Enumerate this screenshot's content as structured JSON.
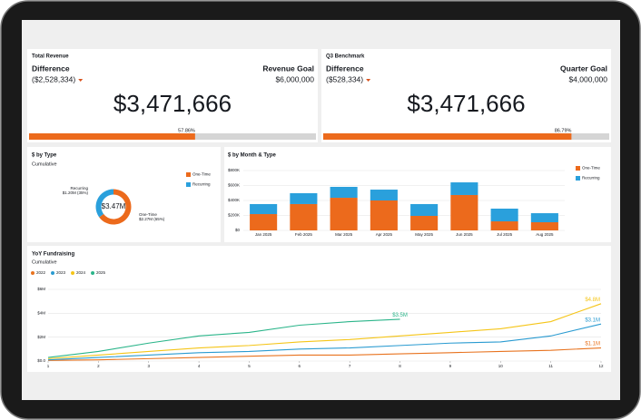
{
  "cards": [
    {
      "title": "Total Revenue",
      "difference_label": "Difference",
      "difference": "($2,528,334)",
      "goal_label": "Revenue Goal",
      "goal": {
        "value": 6000000,
        "label": "$6,000,000"
      },
      "amount": {
        "value": 3471666,
        "label": "$3,471,666"
      },
      "percent": "57.86%"
    },
    {
      "title": "Q3 Benchmark",
      "difference_label": "Difference",
      "difference": "($528,334)",
      "goal_label": "Quarter Goal",
      "goal": {
        "value": 4000000,
        "label": "$4,000,000"
      },
      "amount": {
        "value": 3471666,
        "label": "$3,471,666"
      },
      "percent": "86.79%"
    }
  ],
  "chart_data": [
    {
      "type": "donut",
      "title": "$ by Type",
      "subtitle": "Cumulative",
      "center_label": "$3.47M",
      "categories": [
        "One-Time",
        "Recurring"
      ],
      "values": [
        65,
        35
      ],
      "value_labels": [
        "$2.27M (65%)",
        "$1.20M (35%)"
      ],
      "colors": [
        "#ec6a1c",
        "#2aa0dc"
      ],
      "legend": "right"
    },
    {
      "type": "bar",
      "stacked": true,
      "title": "$ by Month & Type",
      "categories": [
        "Jan 2025",
        "Feb 2025",
        "Mar 2025",
        "Apr 2025",
        "May 2025",
        "Jun 2025",
        "Jul 2025",
        "Aug 2025"
      ],
      "series": [
        {
          "name": "One-Time",
          "color": "#ec6a1c",
          "values": [
            218000,
            352000,
            436000,
            400000,
            194000,
            473000,
            121000,
            109000
          ]
        },
        {
          "name": "Recurring",
          "color": "#2aa0dc",
          "values": [
            134000,
            145000,
            146000,
            145000,
            158000,
            169000,
            170000,
            121000
          ]
        }
      ],
      "ylim": [
        0,
        800000
      ],
      "yticks": [
        {
          "value": 0,
          "label": "$0"
        },
        {
          "value": 200000,
          "label": "$200K"
        },
        {
          "value": 400000,
          "label": "$400K"
        },
        {
          "value": 600000,
          "label": "$600K"
        },
        {
          "value": 800000,
          "label": "$800K"
        }
      ],
      "grid": true,
      "legend": "right"
    },
    {
      "type": "line",
      "title": "YoY Fundraising",
      "subtitle": "Cumulative",
      "x": [
        1,
        2,
        3,
        4,
        5,
        6,
        7,
        8,
        9,
        10,
        11,
        12
      ],
      "xlim": [
        1,
        12
      ],
      "xticks": [
        1,
        2,
        3,
        4,
        5,
        6,
        7,
        8,
        9,
        10,
        11,
        12
      ],
      "series": [
        {
          "name": "2022",
          "color": "#e8731f",
          "values": [
            50000,
            100000,
            200000,
            300000,
            400000,
            500000,
            500000,
            600000,
            700000,
            800000,
            900000,
            1100000
          ],
          "value_labels": [
            null,
            null,
            null,
            null,
            null,
            null,
            null,
            null,
            null,
            null,
            null,
            "$1.1M"
          ]
        },
        {
          "name": "2023",
          "color": "#2a9bd1",
          "values": [
            100000,
            300000,
            500000,
            700000,
            800000,
            1000000,
            1100000,
            1300000,
            1500000,
            1600000,
            2100000,
            3100000
          ],
          "value_labels": [
            null,
            null,
            null,
            null,
            null,
            null,
            null,
            null,
            null,
            null,
            null,
            "$3.1M"
          ]
        },
        {
          "name": "2024",
          "color": "#f5c518",
          "values": [
            200000,
            500000,
            800000,
            1100000,
            1300000,
            1600000,
            1800000,
            2100000,
            2400000,
            2700000,
            3300000,
            4800000
          ],
          "value_labels": [
            null,
            null,
            null,
            null,
            null,
            null,
            null,
            null,
            null,
            null,
            null,
            "$4.8M"
          ]
        },
        {
          "name": "2025",
          "color": "#2bb58a",
          "values": [
            300000,
            800000,
            1500000,
            2100000,
            2400000,
            3000000,
            3300000,
            3500000,
            null,
            null,
            null,
            null
          ],
          "value_labels": [
            null,
            null,
            null,
            null,
            null,
            null,
            null,
            "$3.5M",
            null,
            null,
            null,
            null
          ]
        }
      ],
      "ylim": [
        0,
        6000000
      ],
      "yticks": [
        {
          "value": 0,
          "label": "$0.0"
        },
        {
          "value": 2000000,
          "label": "$2M"
        },
        {
          "value": 4000000,
          "label": "$4M"
        },
        {
          "value": 6000000,
          "label": "$6M"
        }
      ],
      "grid": true,
      "legend": "top-left"
    }
  ]
}
